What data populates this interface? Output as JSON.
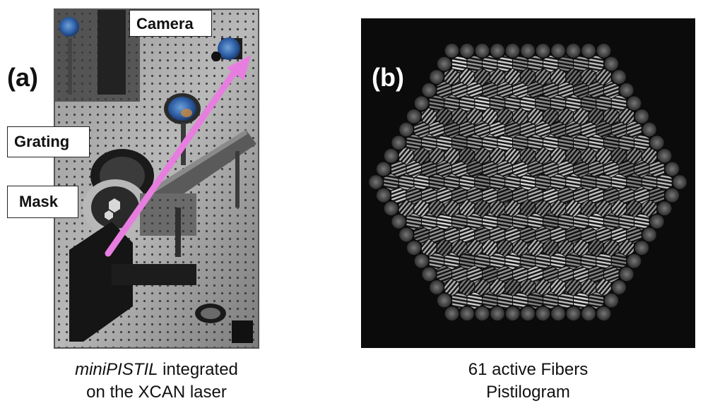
{
  "panel_a": {
    "letter": "(a)",
    "labels": {
      "camera": "Camera",
      "grating": "Grating",
      "mask": "Mask"
    },
    "caption": {
      "italic": "miniPISTIL",
      "rest": " integrated",
      "line2": "on the XCAN laser"
    },
    "arrow_color": "#e87de0"
  },
  "panel_b": {
    "letter": "(b)",
    "caption_line1": "61 active Fibers",
    "caption_line2": "Pistilogram",
    "active_fibers": 61
  }
}
